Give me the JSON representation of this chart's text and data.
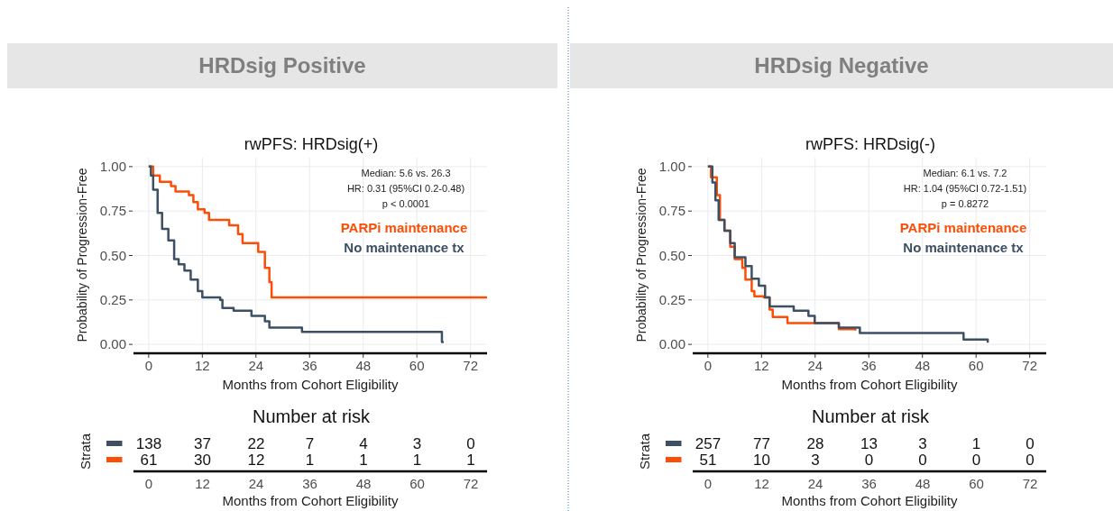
{
  "chart_data": [
    {
      "type": "step",
      "title": "HRDsig Positive",
      "subtitle": "rwPFS: HRDsig(+)",
      "xlabel": "Months from Cohort Eligibility",
      "ylabel": "Probability of Progression-Free",
      "annotations": [
        "Median: 5.6 vs. 26.3",
        "HR: 0.31 (95%CI 0.2-0.48)",
        "p < 0.0001"
      ],
      "xlim": [
        -3.4,
        75.7
      ],
      "xticks": [
        0,
        12,
        24,
        36,
        48,
        60,
        72
      ],
      "ylim": [
        -0.05,
        1.05
      ],
      "yticks": [
        {
          "value": 0,
          "label": "0.00"
        },
        {
          "value": 0.25,
          "label": "0.25"
        },
        {
          "value": 0.5,
          "label": "0.50"
        },
        {
          "value": 0.75,
          "label": "0.75"
        },
        {
          "value": 1,
          "label": "1.00"
        }
      ],
      "grid": true,
      "legend": "top right",
      "series": [
        {
          "name": "PARPi maintenance",
          "color": "#fc4e07",
          "x": [
            0,
            1,
            2.5,
            5,
            6,
            9,
            10,
            11,
            12.5,
            13.5,
            18,
            20,
            21,
            24.5,
            26,
            27,
            27.5,
            75.7
          ],
          "values": [
            1,
            0.95,
            0.915,
            0.89,
            0.86,
            0.84,
            0.8,
            0.76,
            0.74,
            0.7,
            0.67,
            0.62,
            0.57,
            0.52,
            0.43,
            0.35,
            0.264,
            0.264
          ]
        },
        {
          "name": "No maintenance tx",
          "color": "#3d4f63",
          "x": [
            0,
            0.5,
            1,
            2,
            3,
            4.4,
            5.7,
            6.7,
            8,
            9.4,
            11,
            12,
            16,
            16.5,
            19,
            23,
            26,
            27,
            34.3,
            65.6,
            66
          ],
          "values": [
            1,
            0.95,
            0.87,
            0.74,
            0.65,
            0.585,
            0.48,
            0.45,
            0.415,
            0.365,
            0.3,
            0.264,
            0.25,
            0.205,
            0.19,
            0.16,
            0.13,
            0.095,
            0.07,
            0.014,
            0.014
          ]
        }
      ]
    },
    {
      "type": "heatmap",
      "title": "Number at risk",
      "xlabel": "Months from Cohort Eligibility",
      "ylabel": "Strata",
      "categories": [
        "0",
        "12",
        "24",
        "36",
        "48",
        "60",
        "72"
      ],
      "y_categories": [
        null,
        null
      ],
      "data_labels": true,
      "colors": [
        "#3d4f63",
        "#fc4e07"
      ],
      "cells": [
        [
          138,
          37,
          22,
          7,
          4,
          3,
          0
        ],
        [
          61,
          30,
          12,
          1,
          1,
          1,
          1
        ]
      ]
    },
    {
      "type": "step",
      "title": "HRDsig Negative",
      "subtitle": "rwPFS: HRDsig(-)",
      "xlabel": "Months from Cohort Eligibility",
      "ylabel": "Probability of Progression-Free",
      "annotations": [
        "Median: 6.1 vs. 7.2",
        "HR: 1.04 (95%CI 0.72-1.51)",
        "p = 0.8272"
      ],
      "xlim": [
        -3.4,
        75.7
      ],
      "xticks": [
        0,
        12,
        24,
        36,
        48,
        60,
        72
      ],
      "ylim": [
        -0.05,
        1.05
      ],
      "yticks": [
        {
          "value": 0,
          "label": "0.00"
        },
        {
          "value": 0.25,
          "label": "0.25"
        },
        {
          "value": 0.5,
          "label": "0.50"
        },
        {
          "value": 0.75,
          "label": "0.75"
        },
        {
          "value": 1,
          "label": "1.00"
        }
      ],
      "grid": true,
      "legend": "top right",
      "series": [
        {
          "name": "PARPi maintenance",
          "color": "#fc4e07",
          "x": [
            0,
            0.7,
            2,
            2.7,
            3.7,
            5,
            6,
            7.7,
            8.4,
            9.8,
            10.4,
            12.5,
            13.8,
            14.5,
            17.8,
            29.3,
            33
          ],
          "values": [
            1,
            0.94,
            0.84,
            0.7,
            0.64,
            0.55,
            0.48,
            0.43,
            0.365,
            0.3,
            0.27,
            0.264,
            0.196,
            0.154,
            0.12,
            0.086,
            0.078
          ]
        },
        {
          "name": "No maintenance tx",
          "color": "#3d4f63",
          "x": [
            0,
            1,
            1.7,
            2.4,
            3.7,
            5,
            6,
            8.4,
            9.8,
            11.4,
            12.8,
            13.8,
            19.2,
            22.5,
            23.9,
            29.3,
            34,
            57.2,
            62.6
          ],
          "values": [
            1,
            0.91,
            0.81,
            0.7,
            0.64,
            0.57,
            0.49,
            0.44,
            0.37,
            0.33,
            0.264,
            0.213,
            0.19,
            0.16,
            0.12,
            0.095,
            0.064,
            0.027,
            0.01
          ]
        }
      ]
    },
    {
      "type": "heatmap",
      "title": "Number at risk",
      "xlabel": "Months from Cohort Eligibility",
      "ylabel": "Strata",
      "categories": [
        "0",
        "12",
        "24",
        "36",
        "48",
        "60",
        "72"
      ],
      "y_categories": [
        null,
        null
      ],
      "data_labels": true,
      "colors": [
        "#3d4f63",
        "#fc4e07"
      ],
      "cells": [
        [
          257,
          77,
          28,
          13,
          3,
          1,
          0
        ],
        [
          51,
          10,
          3,
          0,
          0,
          0,
          0
        ]
      ]
    }
  ]
}
